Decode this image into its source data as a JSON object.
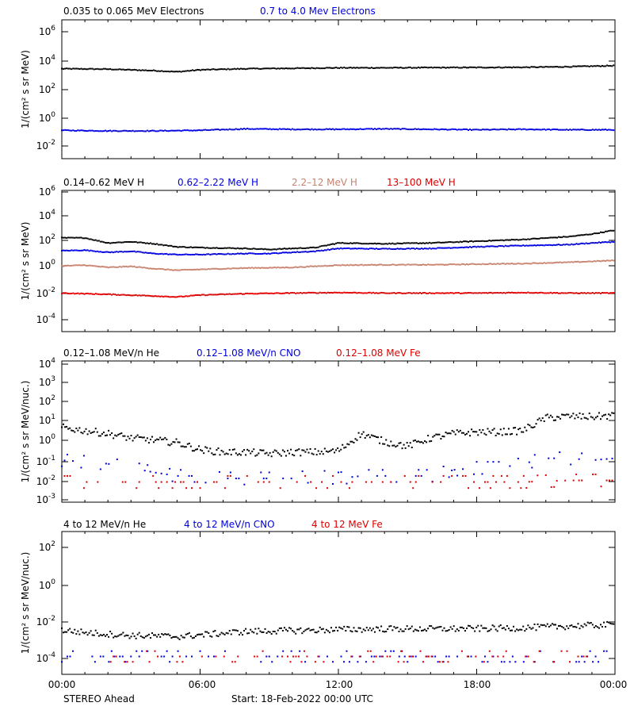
{
  "chart_data": [
    {
      "type": "scatter",
      "ylabel": "1/(cm² s sr MeV)",
      "yscale": "log",
      "ylim": [
        0.001,
        10000000
      ],
      "xlim": [
        0,
        24
      ],
      "xunit": "hours",
      "yticks": [
        {
          "base": "10",
          "exp": "6"
        },
        {
          "base": "10",
          "exp": "4"
        },
        {
          "base": "10",
          "exp": "2"
        },
        {
          "base": "10",
          "exp": "0"
        },
        {
          "base": "10",
          "exp": "-2"
        }
      ],
      "series": [
        {
          "name": "0.035 to 0.065 MeV Electrons",
          "color": "#000000",
          "x": [
            0,
            2,
            4,
            5,
            6,
            8,
            10,
            12,
            14,
            16,
            18,
            20,
            22,
            24
          ],
          "y": [
            3000,
            2800,
            2200,
            1800,
            2500,
            3000,
            3200,
            3500,
            3500,
            3600,
            3700,
            3800,
            4200,
            5000
          ]
        },
        {
          "name": "0.7 to 4.0 Mev Electrons",
          "color": "#0000dd",
          "x": [
            0,
            2,
            4,
            6,
            8,
            10,
            12,
            14,
            16,
            18,
            20,
            22,
            24
          ],
          "y": [
            0.11,
            0.1,
            0.1,
            0.11,
            0.14,
            0.13,
            0.13,
            0.14,
            0.13,
            0.12,
            0.13,
            0.12,
            0.12
          ]
        }
      ]
    },
    {
      "type": "scatter",
      "ylabel": "1/(cm² s sr MeV)",
      "yscale": "log",
      "ylim": [
        1e-05,
        1000000
      ],
      "xlim": [
        0,
        24
      ],
      "xunit": "hours",
      "yticks": [
        {
          "base": "10",
          "exp": "6"
        },
        {
          "base": "10",
          "exp": "4"
        },
        {
          "base": "10",
          "exp": "2"
        },
        {
          "base": "10",
          "exp": "0"
        },
        {
          "base": "10",
          "exp": "-2"
        },
        {
          "base": "10",
          "exp": "-4"
        }
      ],
      "series": [
        {
          "name": "0.14–0.62 MeV H",
          "color": "#000000",
          "x": [
            0,
            1,
            2,
            3,
            4,
            5,
            6,
            8,
            9,
            10,
            11,
            12,
            14,
            16,
            18,
            20,
            22,
            23,
            24
          ],
          "y": [
            200,
            200,
            80,
            100,
            70,
            40,
            35,
            30,
            25,
            30,
            35,
            80,
            70,
            80,
            110,
            150,
            250,
            400,
            800
          ]
        },
        {
          "name": "0.62–2.22 MeV H",
          "color": "#0000dd",
          "x": [
            0,
            1,
            2,
            3,
            4,
            5,
            6,
            8,
            9,
            10,
            11,
            12,
            14,
            16,
            18,
            20,
            22,
            23,
            24
          ],
          "y": [
            20,
            22,
            15,
            18,
            12,
            10,
            10,
            12,
            12,
            15,
            18,
            30,
            28,
            30,
            40,
            50,
            60,
            80,
            100
          ]
        },
        {
          "name": "2.2–12 MeV H",
          "color": "#c8826e",
          "x": [
            0,
            1,
            2,
            3,
            4,
            5,
            6,
            8,
            10,
            12,
            14,
            16,
            18,
            20,
            22,
            24
          ],
          "y": [
            1.3,
            1.5,
            1.0,
            1.2,
            0.8,
            0.6,
            0.7,
            0.9,
            1.0,
            1.5,
            1.6,
            1.6,
            1.8,
            2.0,
            2.5,
            3.5
          ]
        },
        {
          "name": "13–100 MeV H",
          "color": "#dd0000",
          "x": [
            0,
            2,
            4,
            5,
            6,
            8,
            10,
            12,
            14,
            16,
            18,
            20,
            22,
            24
          ],
          "y": [
            0.01,
            0.008,
            0.006,
            0.005,
            0.007,
            0.009,
            0.01,
            0.011,
            0.01,
            0.01,
            0.01,
            0.011,
            0.01,
            0.01
          ]
        }
      ]
    },
    {
      "type": "scatter",
      "ylabel": "1/(cm² s sr MeV/nuc.)",
      "yscale": "log",
      "ylim": [
        0.001,
        10000
      ],
      "xlim": [
        0,
        24
      ],
      "xunit": "hours",
      "yticks": [
        {
          "base": "10",
          "exp": "4"
        },
        {
          "base": "10",
          "exp": "3"
        },
        {
          "base": "10",
          "exp": "2"
        },
        {
          "base": "10",
          "exp": "1"
        },
        {
          "base": "10",
          "exp": "0"
        },
        {
          "base": "10",
          "exp": "-1"
        },
        {
          "base": "10",
          "exp": "-2"
        },
        {
          "base": "10",
          "exp": "-3"
        }
      ],
      "series": [
        {
          "name": "0.12–1.08 MeV/n He",
          "color": "#000000",
          "x": [
            0,
            1,
            2,
            3,
            4,
            5,
            6,
            7,
            8,
            9,
            10,
            11,
            12,
            13,
            14,
            15,
            16,
            17,
            18,
            19,
            20,
            21,
            22,
            23,
            24
          ],
          "y": [
            5,
            3.5,
            2.5,
            1.5,
            1.2,
            0.9,
            0.4,
            0.3,
            0.3,
            0.25,
            0.3,
            0.3,
            0.35,
            2.5,
            1.0,
            0.6,
            1.5,
            2.5,
            3,
            3,
            3.5,
            15,
            18,
            17,
            20
          ]
        },
        {
          "name": "0.12–1.08 MeV/n CNO",
          "color": "#0000dd",
          "x": [
            0,
            1,
            2,
            3,
            4,
            5,
            6,
            7,
            8,
            9,
            10,
            11,
            12,
            13,
            14,
            15,
            16,
            17,
            18,
            19,
            20,
            21,
            22,
            23,
            24
          ],
          "y": [
            0.12,
            0.1,
            0.08,
            0.05,
            0.03,
            0.02,
            0.02,
            0.015,
            0.015,
            0.015,
            0.015,
            0.02,
            0.015,
            0.02,
            0.02,
            0.02,
            0.02,
            0.04,
            0.05,
            0.05,
            0.08,
            0.15,
            0.15,
            0.12,
            0.15
          ]
        },
        {
          "name": "0.12–1.08 MeV Fe",
          "color": "#dd0000",
          "x": [
            0,
            2,
            4,
            6,
            8,
            10,
            12,
            14,
            16,
            18,
            20,
            22,
            24
          ],
          "y": [
            0.01,
            0.01,
            0.01,
            0.01,
            0.01,
            0.01,
            0.01,
            0.01,
            0.01,
            0.01,
            0.01,
            0.012,
            0.012
          ]
        }
      ]
    },
    {
      "type": "scatter",
      "ylabel": "1/(cm² s sr MeV/nuc.)",
      "yscale": "log",
      "ylim": [
        1e-05,
        1000
      ],
      "xlim": [
        0,
        24
      ],
      "xunit": "hours",
      "yticks": [
        {
          "base": "10",
          "exp": "2"
        },
        {
          "base": "10",
          "exp": "0"
        },
        {
          "base": "10",
          "exp": "-2"
        },
        {
          "base": "10",
          "exp": "-4"
        }
      ],
      "series": [
        {
          "name": "4 to 12 MeV/n He",
          "color": "#000000",
          "x": [
            0,
            1,
            2,
            3,
            4,
            5,
            6,
            8,
            10,
            12,
            14,
            16,
            18,
            20,
            22,
            24
          ],
          "y": [
            0.003,
            0.0022,
            0.0018,
            0.0015,
            0.0014,
            0.0013,
            0.0016,
            0.0025,
            0.0028,
            0.0032,
            0.0035,
            0.0035,
            0.0036,
            0.004,
            0.005,
            0.006
          ]
        },
        {
          "name": "4 to 12 MeV/n CNO",
          "color": "#0000dd",
          "x": [
            0,
            2,
            4,
            6,
            8,
            10,
            12,
            14,
            16,
            18,
            20,
            22,
            24
          ],
          "y": [
            0.0001,
            0.0001,
            0.0001,
            0.0001,
            0.0001,
            0.0001,
            0.0001,
            0.0001,
            0.0001,
            0.0001,
            0.0001,
            0.0001,
            0.0001
          ]
        },
        {
          "name": "4 to 12 MeV Fe",
          "color": "#dd0000",
          "x": [
            2,
            5,
            8,
            11,
            14,
            17,
            20,
            23
          ],
          "y": [
            0.0001,
            0.0001,
            0.0001,
            0.0001,
            0.0001,
            0.0001,
            0.0001,
            0.0001
          ]
        }
      ]
    }
  ],
  "xaxis": {
    "tick_labels": [
      "00:00",
      "06:00",
      "12:00",
      "18:00",
      "00:00"
    ],
    "tick_values": [
      0,
      6,
      12,
      18,
      24
    ]
  },
  "footer": {
    "spacecraft": "STEREO Ahead",
    "start": "Start: 18-Feb-2022 00:00 UTC"
  }
}
